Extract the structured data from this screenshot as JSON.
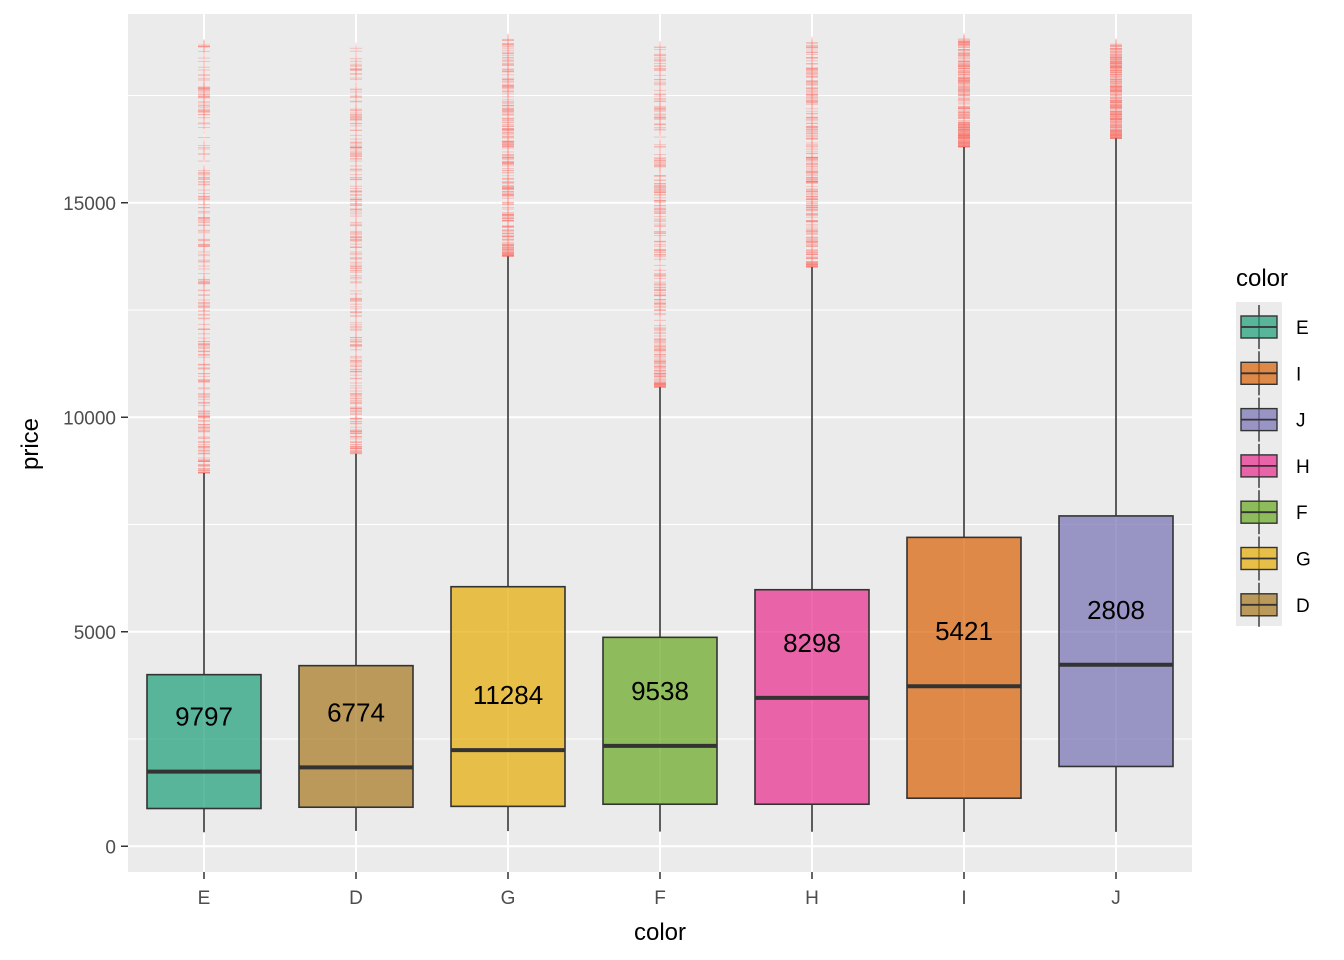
{
  "chart_data": {
    "type": "boxplot",
    "xlabel": "color",
    "ylabel": "price",
    "ylim": [
      -600,
      19400
    ],
    "y_ticks": [
      0,
      5000,
      10000,
      15000
    ],
    "y_tick_labels": [
      "0",
      "5000",
      "10000",
      "15000"
    ],
    "grid": true,
    "categories": [
      "E",
      "D",
      "G",
      "F",
      "H",
      "I",
      "J"
    ],
    "boxes": [
      {
        "category": "E",
        "count_label": "9797",
        "min": 326,
        "q1": 880,
        "median": 1740,
        "q3": 4000,
        "whisker_high": 8700,
        "outlier_min": 8700,
        "outlier_max": 18730,
        "fill": "#1b9e77"
      },
      {
        "category": "D",
        "count_label": "6774",
        "min": 357,
        "q1": 910,
        "median": 1840,
        "q3": 4210,
        "whisker_high": 9150,
        "outlier_min": 9150,
        "outlier_max": 18690,
        "fill": "#a6761d"
      },
      {
        "category": "G",
        "count_label": "11284",
        "min": 354,
        "q1": 930,
        "median": 2240,
        "q3": 6050,
        "whisker_high": 13750,
        "outlier_min": 13750,
        "outlier_max": 18820,
        "fill": "#e6ab02"
      },
      {
        "category": "F",
        "count_label": "9538",
        "min": 342,
        "q1": 980,
        "median": 2340,
        "q3": 4870,
        "whisker_high": 10700,
        "outlier_min": 10700,
        "outlier_max": 18790,
        "fill": "#66a61e"
      },
      {
        "category": "H",
        "count_label": "8298",
        "min": 337,
        "q1": 980,
        "median": 3460,
        "q3": 5980,
        "whisker_high": 13500,
        "outlier_min": 13500,
        "outlier_max": 18800,
        "fill": "#e7298a"
      },
      {
        "category": "I",
        "count_label": "5421",
        "min": 334,
        "q1": 1120,
        "median": 3730,
        "q3": 7200,
        "whisker_high": 16300,
        "outlier_min": 16300,
        "outlier_max": 18820,
        "fill": "#d95f02"
      },
      {
        "category": "J",
        "count_label": "2808",
        "min": 335,
        "q1": 1860,
        "median": 4230,
        "q3": 7700,
        "whisker_high": 16500,
        "outlier_min": 16500,
        "outlier_max": 18710,
        "fill": "#7570b3"
      }
    ],
    "outlier_color": "#f8766d",
    "legend": {
      "title": "color",
      "position": "right",
      "entries": [
        {
          "label": "E",
          "fill": "#1b9e77"
        },
        {
          "label": "I",
          "fill": "#d95f02"
        },
        {
          "label": "J",
          "fill": "#7570b3"
        },
        {
          "label": "H",
          "fill": "#e7298a"
        },
        {
          "label": "F",
          "fill": "#66a61e"
        },
        {
          "label": "G",
          "fill": "#e6ab02"
        },
        {
          "label": "D",
          "fill": "#a6761d"
        }
      ]
    }
  }
}
